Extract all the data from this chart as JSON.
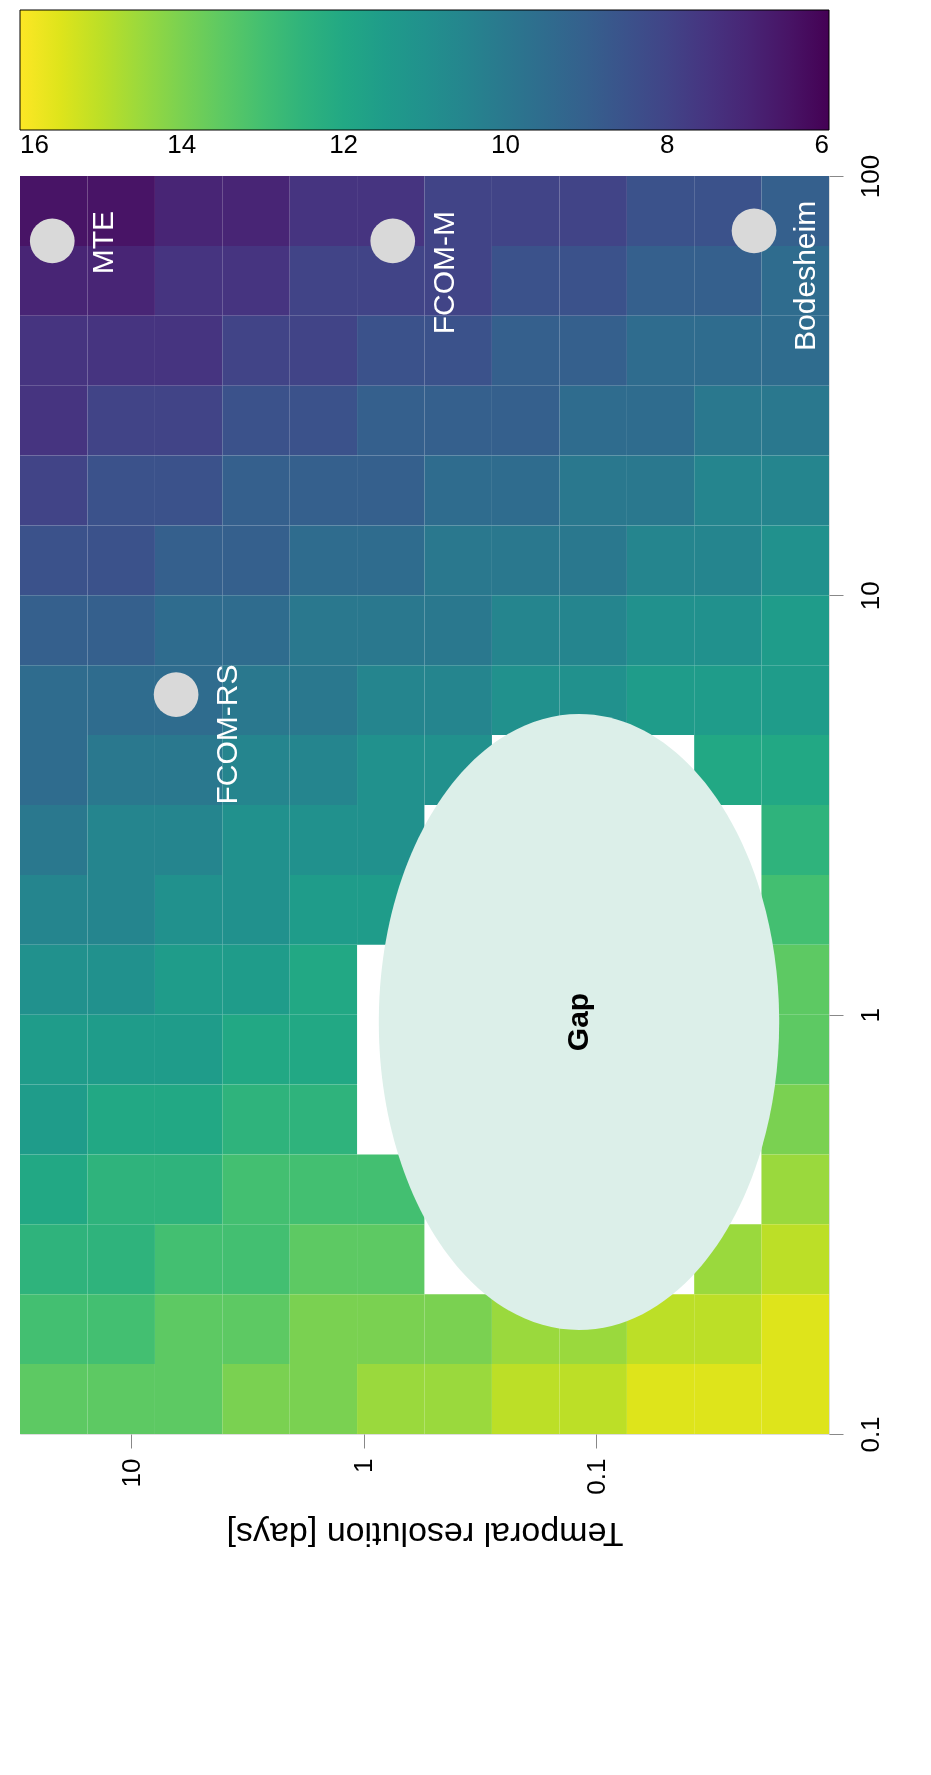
{
  "chart_data": {
    "type": "heatmap",
    "xlabel": "Temporal resolution [days]",
    "x": [
      21.5,
      11.0,
      5.66,
      2.9,
      1.49,
      0.765,
      0.393,
      0.201,
      0.103,
      0.053,
      0.0272,
      0.014
    ],
    "cells": [
      [
        6.5,
        6.5,
        7,
        7,
        7.5,
        7.5,
        8,
        8,
        8,
        8.5,
        8.5,
        9
      ],
      [
        7,
        7,
        7.5,
        7.5,
        8,
        8,
        8,
        8.5,
        8.5,
        9,
        9,
        9.5
      ],
      [
        7.5,
        7.5,
        7.5,
        8,
        8,
        8.5,
        8.5,
        9,
        9,
        9.5,
        9.5,
        9.5
      ],
      [
        7.5,
        8,
        8,
        8.5,
        8.5,
        9,
        9,
        9,
        9.5,
        9.5,
        10,
        10
      ],
      [
        8,
        8.5,
        8.5,
        9,
        9,
        9,
        9.5,
        9.5,
        10,
        10,
        10.5,
        10.5
      ],
      [
        8.5,
        8.5,
        9,
        9,
        9.5,
        9.5,
        10,
        10,
        10,
        10.5,
        10.5,
        11
      ],
      [
        9,
        9,
        9.5,
        9.5,
        10,
        10,
        10,
        10.5,
        10.5,
        11,
        11,
        11.5
      ],
      [
        9.5,
        9.5,
        9.5,
        10,
        10,
        10.5,
        10.5,
        11,
        11,
        11.5,
        11.5,
        11.5
      ],
      [
        9.5,
        10,
        10,
        10.5,
        10.5,
        11,
        11,
        null,
        null,
        null,
        12,
        12
      ],
      [
        10,
        10.5,
        10.5,
        11,
        11,
        11,
        null,
        null,
        null,
        null,
        null,
        12.5
      ],
      [
        10.5,
        10.5,
        11,
        11,
        11.5,
        11.5,
        null,
        null,
        null,
        null,
        null,
        13
      ],
      [
        11,
        11,
        11.5,
        11.5,
        12,
        null,
        null,
        null,
        null,
        null,
        null,
        13.5
      ],
      [
        11.5,
        11.5,
        11.5,
        12,
        12,
        null,
        null,
        null,
        null,
        null,
        null,
        13.5
      ],
      [
        11.5,
        12,
        12,
        12.5,
        12.5,
        null,
        null,
        null,
        null,
        null,
        null,
        14
      ],
      [
        12,
        12.5,
        12.5,
        13,
        13,
        13,
        null,
        null,
        null,
        null,
        null,
        14.5
      ],
      [
        12.5,
        12.5,
        13,
        13,
        13.5,
        13.5,
        null,
        null,
        null,
        null,
        14.5,
        15
      ],
      [
        13,
        13,
        13.5,
        13.5,
        14,
        14,
        14,
        14.5,
        14.5,
        15,
        15,
        15.5
      ],
      [
        13.5,
        13.5,
        13.5,
        14,
        14,
        14.5,
        14.5,
        15,
        15,
        15.5,
        15.5,
        15.5
      ]
    ],
    "clim": [
      6,
      16
    ],
    "cticks": [
      16,
      14,
      12,
      10,
      8,
      6
    ],
    "xlim": [
      30,
      0.01
    ],
    "xticks": [
      10,
      1,
      0.1
    ],
    "ylim": [
      0.1,
      100
    ],
    "yticks": [
      0.1,
      1,
      10,
      100
    ],
    "log": "xy",
    "grid": false,
    "series": [
      {
        "type": "scatter",
        "color": "#d9d9d9",
        "x": [
          21.8,
          0.75,
          0.021,
          6.4
        ],
        "values": [
          70,
          70,
          74,
          5.8
        ]
      }
    ],
    "annotations": [
      "MTE",
      "FCOM-M",
      "Bodesheim",
      "FCOM-RS",
      "Gap"
    ]
  }
}
